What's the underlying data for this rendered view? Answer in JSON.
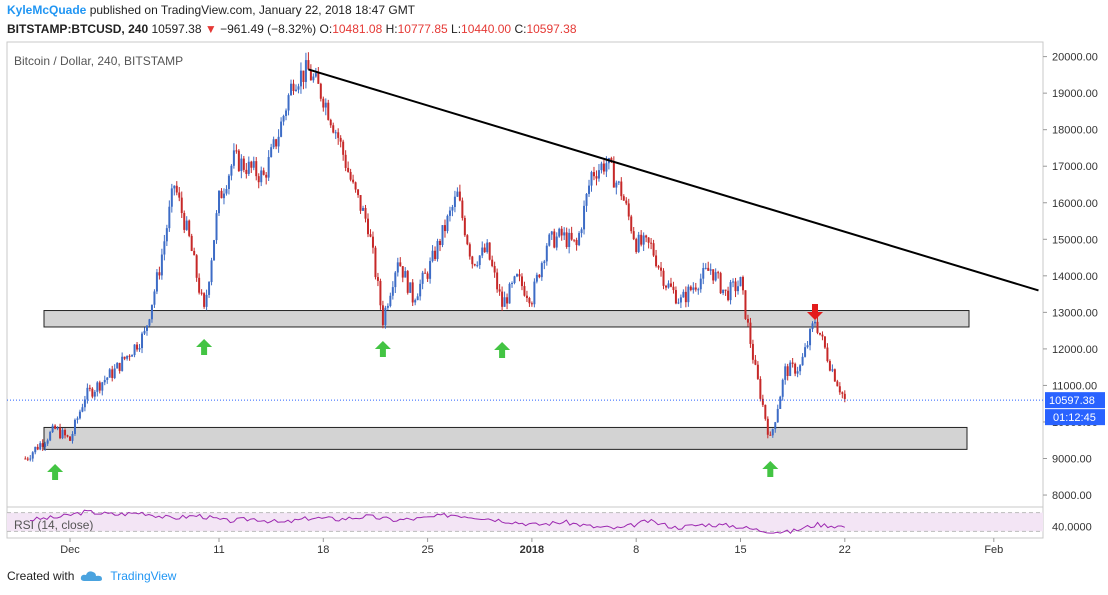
{
  "header": {
    "author": "KyleMcQuade",
    "published_text": "published on TradingView.com, January 22, 2018 18:47 GMT",
    "symbol": "BITSTAMP:BTCUSD, 240",
    "last": "10597.38",
    "change_arrow": "▼",
    "change": "−961.49 (−8.32%)",
    "o_label": "O:",
    "o_value": "10481.08",
    "h_label": "H:",
    "h_value": "10777.85",
    "l_label": "L:",
    "l_value": "10440.00",
    "c_label": "C:",
    "c_value": "10597.38"
  },
  "footer": {
    "created_with": "Created with",
    "brand": "TradingView",
    "brand_icon": "cloud-icon"
  },
  "chart_data": {
    "type": "candlestick",
    "title": "Bitcoin / Dollar, 240, BITSTAMP",
    "ylim": [
      7700,
      20400
    ],
    "y_ticks": [
      "20000.00",
      "19000.00",
      "18000.00",
      "17000.00",
      "16000.00",
      "15000.00",
      "14000.00",
      "13000.00",
      "12000.00",
      "11000.00",
      "10000.00",
      "9000.00",
      "8000.00"
    ],
    "x_ticks": [
      "Dec",
      "11",
      "18",
      "25",
      "2018",
      "8",
      "15",
      "22",
      "Feb"
    ],
    "last_price_label": "10597.38",
    "countdown_label": "01:12:45",
    "colors": {
      "up": "#3d6cc6",
      "down": "#c62828",
      "support_fill": "#d3d3d3",
      "trendline": "#000000",
      "arrow_up": "#43c443",
      "arrow_down": "#e31b1b",
      "price_line": "#2962ff",
      "rsi_line": "#9c27b0",
      "rsi_band": "#f3e5f5"
    },
    "price_path": [
      [
        "Nov 28",
        9000
      ],
      [
        "Nov 30",
        9800
      ],
      [
        "Dec 1",
        9500
      ],
      [
        "Dec 2",
        10700
      ],
      [
        "Dec 4",
        11400
      ],
      [
        "Dec 6",
        12400
      ],
      [
        "Dec 7",
        14200
      ],
      [
        "Dec 8",
        16500
      ],
      [
        "Dec 9",
        15000
      ],
      [
        "Dec 10",
        13000
      ],
      [
        "Dec 11",
        16100
      ],
      [
        "Dec 12",
        17200
      ],
      [
        "Dec 14",
        16700
      ],
      [
        "Dec 15",
        17900
      ],
      [
        "Dec 16",
        19400
      ],
      [
        "Dec 17",
        19600
      ],
      [
        "Dec 18",
        18900
      ],
      [
        "Dec 19",
        17800
      ],
      [
        "Dec 20",
        16400
      ],
      [
        "Dec 21",
        15400
      ],
      [
        "Dec 22",
        12800
      ],
      [
        "Dec 23",
        14500
      ],
      [
        "Dec 24",
        13400
      ],
      [
        "Dec 25",
        14100
      ],
      [
        "Dec 27",
        16200
      ],
      [
        "Dec 28",
        14400
      ],
      [
        "Dec 29",
        14700
      ],
      [
        "Dec 30",
        13200
      ],
      [
        "Dec 31",
        13900
      ],
      [
        "Jan 1",
        13400
      ],
      [
        "Jan 2",
        14900
      ],
      [
        "Jan 3",
        15100
      ],
      [
        "Jan 4",
        14800
      ],
      [
        "Jan 5",
        16800
      ],
      [
        "Jan 6",
        17100
      ],
      [
        "Jan 7",
        16300
      ],
      [
        "Jan 8",
        14900
      ],
      [
        "Jan 9",
        14800
      ],
      [
        "Jan 10",
        13800
      ],
      [
        "Jan 11",
        13300
      ],
      [
        "Jan 12",
        13800
      ],
      [
        "Jan 13",
        14200
      ],
      [
        "Jan 14",
        13500
      ],
      [
        "Jan 15",
        13800
      ],
      [
        "Jan 16",
        11400
      ],
      [
        "Jan 17",
        9500
      ],
      [
        "Jan 18",
        11400
      ],
      [
        "Jan 19",
        11500
      ],
      [
        "Jan 20",
        12800
      ],
      [
        "Jan 21",
        11600
      ],
      [
        "Jan 22",
        10597
      ]
    ],
    "support_zones": [
      {
        "low": 12600,
        "high": 13050
      },
      {
        "low": 9250,
        "high": 9850
      }
    ],
    "trendline": {
      "from": {
        "date": "Dec 17",
        "price": 19650
      },
      "to": {
        "date": "Feb 4",
        "price": 13600
      }
    },
    "markers": [
      {
        "type": "up",
        "date": "Nov 30"
      },
      {
        "type": "up",
        "date": "Dec 10"
      },
      {
        "type": "up",
        "date": "Dec 22"
      },
      {
        "type": "up",
        "date": "Dec 30"
      },
      {
        "type": "up",
        "date": "Jan 17"
      },
      {
        "type": "down",
        "date": "Jan 20"
      }
    ],
    "rsi": {
      "label": "RSI (14, close)",
      "tick": "40.0000",
      "values": [
        55,
        60,
        72,
        66,
        70,
        58,
        64,
        52,
        57,
        48,
        59,
        56,
        62,
        54,
        58,
        66,
        60,
        52,
        44,
        50,
        40,
        36,
        52,
        38,
        45,
        42,
        32,
        28,
        45,
        40
      ]
    }
  }
}
